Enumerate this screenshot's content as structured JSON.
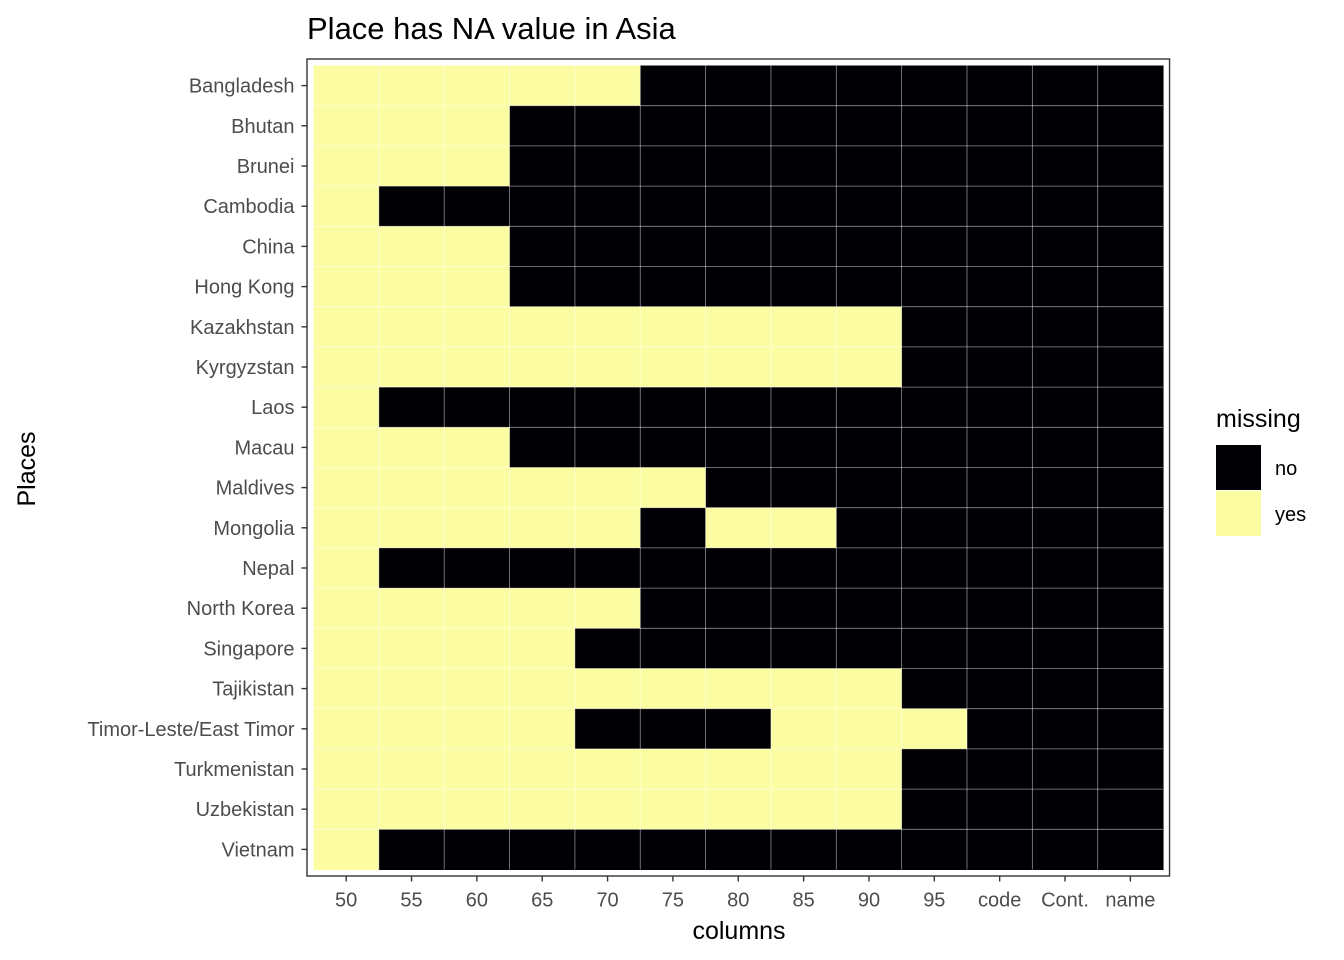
{
  "chart_data": {
    "type": "heatmap",
    "title": "Place has NA value in Asia",
    "xlabel": "columns",
    "ylabel": "Places",
    "x_categories": [
      "50",
      "55",
      "60",
      "65",
      "70",
      "75",
      "80",
      "85",
      "90",
      "95",
      "code",
      "Cont.",
      "name"
    ],
    "y_categories": [
      "Bangladesh",
      "Bhutan",
      "Brunei",
      "Cambodia",
      "China",
      "Hong Kong",
      "Kazakhstan",
      "Kyrgyzstan",
      "Laos",
      "Macau",
      "Maldives",
      "Mongolia",
      "Nepal",
      "North Korea",
      "Singapore",
      "Tajikistan",
      "Timor-Leste/East Timor",
      "Turkmenistan",
      "Uzbekistan",
      "Vietnam"
    ],
    "legend": {
      "title": "missing",
      "entries": [
        {
          "label": "no",
          "color": "#000004"
        },
        {
          "label": "yes",
          "color": "#FCFDA3"
        }
      ],
      "position": "right"
    },
    "grid": true,
    "values": [
      [
        1,
        1,
        1,
        1,
        1,
        0,
        0,
        0,
        0,
        0,
        0,
        0,
        0
      ],
      [
        1,
        1,
        1,
        0,
        0,
        0,
        0,
        0,
        0,
        0,
        0,
        0,
        0
      ],
      [
        1,
        1,
        1,
        0,
        0,
        0,
        0,
        0,
        0,
        0,
        0,
        0,
        0
      ],
      [
        1,
        0,
        0,
        0,
        0,
        0,
        0,
        0,
        0,
        0,
        0,
        0,
        0
      ],
      [
        1,
        1,
        1,
        0,
        0,
        0,
        0,
        0,
        0,
        0,
        0,
        0,
        0
      ],
      [
        1,
        1,
        1,
        0,
        0,
        0,
        0,
        0,
        0,
        0,
        0,
        0,
        0
      ],
      [
        1,
        1,
        1,
        1,
        1,
        1,
        1,
        1,
        1,
        0,
        0,
        0,
        0
      ],
      [
        1,
        1,
        1,
        1,
        1,
        1,
        1,
        1,
        1,
        0,
        0,
        0,
        0
      ],
      [
        1,
        0,
        0,
        0,
        0,
        0,
        0,
        0,
        0,
        0,
        0,
        0,
        0
      ],
      [
        1,
        1,
        1,
        0,
        0,
        0,
        0,
        0,
        0,
        0,
        0,
        0,
        0
      ],
      [
        1,
        1,
        1,
        1,
        1,
        1,
        0,
        0,
        0,
        0,
        0,
        0,
        0
      ],
      [
        1,
        1,
        1,
        1,
        1,
        0,
        1,
        1,
        0,
        0,
        0,
        0,
        0
      ],
      [
        1,
        0,
        0,
        0,
        0,
        0,
        0,
        0,
        0,
        0,
        0,
        0,
        0
      ],
      [
        1,
        1,
        1,
        1,
        1,
        0,
        0,
        0,
        0,
        0,
        0,
        0,
        0
      ],
      [
        1,
        1,
        1,
        1,
        0,
        0,
        0,
        0,
        0,
        0,
        0,
        0,
        0
      ],
      [
        1,
        1,
        1,
        1,
        1,
        1,
        1,
        1,
        1,
        0,
        0,
        0,
        0
      ],
      [
        1,
        1,
        1,
        1,
        0,
        0,
        0,
        1,
        1,
        1,
        0,
        0,
        0
      ],
      [
        1,
        1,
        1,
        1,
        1,
        1,
        1,
        1,
        1,
        0,
        0,
        0,
        0
      ],
      [
        1,
        1,
        1,
        1,
        1,
        1,
        1,
        1,
        1,
        0,
        0,
        0,
        0
      ],
      [
        1,
        0,
        0,
        0,
        0,
        0,
        0,
        0,
        0,
        0,
        0,
        0,
        0
      ]
    ]
  }
}
